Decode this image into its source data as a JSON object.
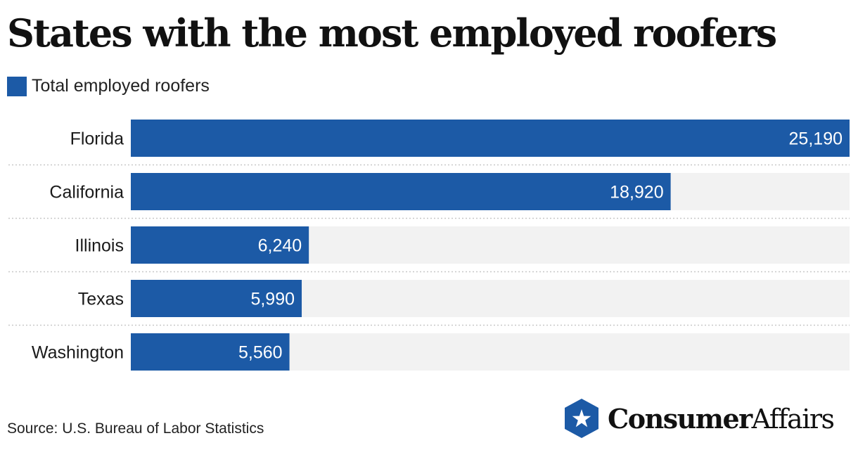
{
  "title": "States with the most employed roofers",
  "legend": {
    "label": "Total employed roofers"
  },
  "colors": {
    "bar": "#1c5aa6",
    "track": "#f2f2f2",
    "separator": "#c8c8c8",
    "label_text": "#ffffff"
  },
  "chart_data": {
    "type": "bar",
    "orientation": "horizontal",
    "categories": [
      "Florida",
      "California",
      "Illinois",
      "Texas",
      "Washington"
    ],
    "series": [
      {
        "name": "Total employed roofers",
        "values": [
          25190,
          18920,
          6240,
          5990,
          5560
        ]
      }
    ],
    "value_labels": [
      "25,190",
      "18,920",
      "6,240",
      "5,990",
      "5,560"
    ],
    "xlim": [
      0,
      25190
    ],
    "legend_position": "top-left",
    "grid": false
  },
  "source": "Source: U.S. Bureau of Labor Statistics",
  "brand": {
    "bold": "Consumer",
    "light": "Affairs",
    "icon": "star-shield-icon"
  }
}
